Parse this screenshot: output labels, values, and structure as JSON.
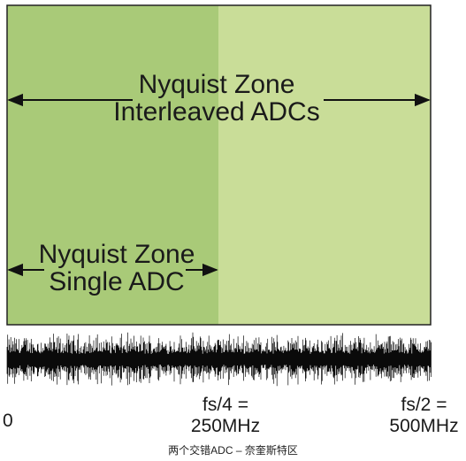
{
  "zones": {
    "interleaved": {
      "line1": "Nyquist Zone",
      "line2": "Interleaved ADCs",
      "color": "#c9dd98"
    },
    "single": {
      "line1": "Nyquist Zone",
      "line2": "Single ADC",
      "color": "#a9ca78"
    }
  },
  "axis": {
    "zero": "0",
    "fs4": {
      "line1": "fs/4 =",
      "line2": "250MHz"
    },
    "fs2": {
      "line1": "fs/2 =",
      "line2": "500MHz"
    }
  },
  "caption": "两个交错ADC – 奈奎斯特区",
  "colors": {
    "border": "#222222",
    "arrow": "#111111",
    "noise": "#0a0a0a"
  }
}
